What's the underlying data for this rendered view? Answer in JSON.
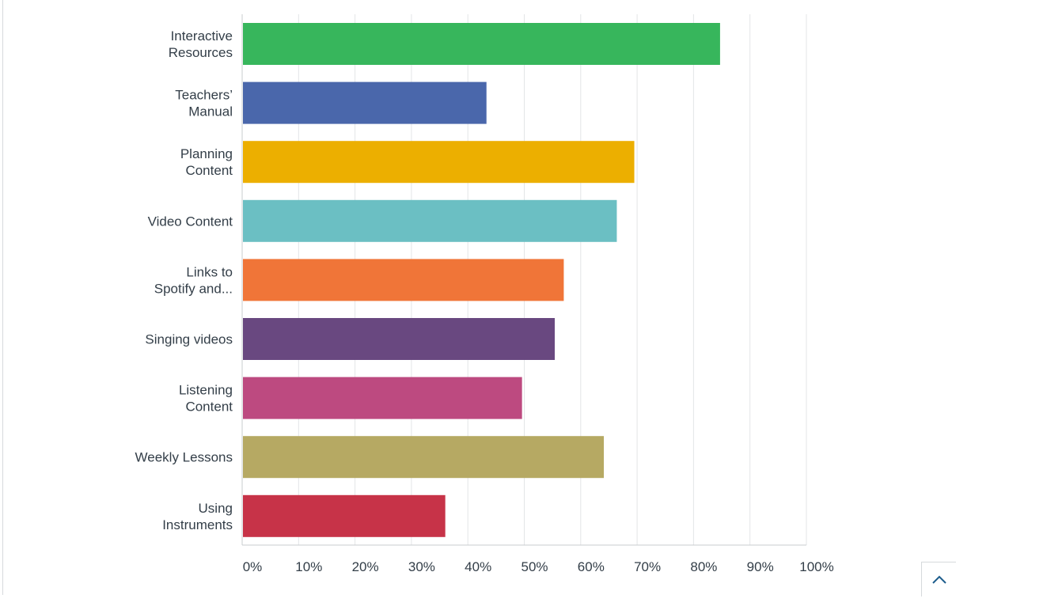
{
  "chart_data": {
    "type": "bar",
    "orientation": "horizontal",
    "categories": [
      [
        "Interactive",
        "Resources"
      ],
      [
        "Teachers’",
        "Manual"
      ],
      [
        "Planning",
        "Content"
      ],
      [
        "Video Content"
      ],
      [
        "Links to",
        "Spotify and..."
      ],
      [
        "Singing videos"
      ],
      [
        "Listening",
        "Content"
      ],
      [
        "Weekly Lessons"
      ],
      [
        "Using",
        "Instruments"
      ]
    ],
    "values": [
      84.7,
      43.3,
      69.5,
      66.4,
      57.0,
      55.4,
      49.6,
      64.1,
      36.0
    ],
    "colors": [
      "#37b65c",
      "#4a67ab",
      "#ecaf00",
      "#6bbfc3",
      "#f07538",
      "#694880",
      "#bd4a80",
      "#b6a963",
      "#c73348"
    ],
    "xlim": [
      0,
      100
    ],
    "ticks": [
      0,
      10,
      20,
      30,
      40,
      50,
      60,
      70,
      80,
      90,
      100
    ],
    "tick_labels": [
      "0%",
      "10%",
      "20%",
      "30%",
      "40%",
      "50%",
      "60%",
      "70%",
      "80%",
      "90%",
      "100%"
    ],
    "grid": true,
    "title": "",
    "xlabel": "",
    "ylabel": ""
  },
  "scroll_top": {
    "icon": "chevron-up-icon"
  }
}
